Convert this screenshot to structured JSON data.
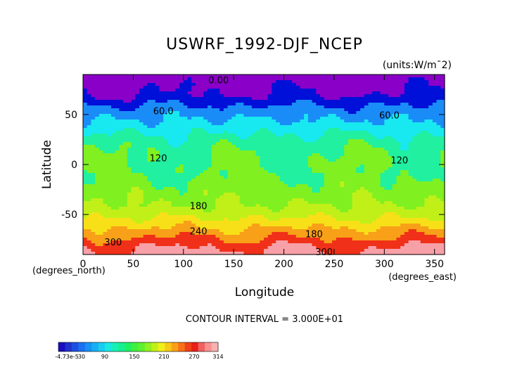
{
  "chart_data": {
    "type": "heatmap",
    "title": "USWRF_1992-DJF_NCEP",
    "units": "(units:W/m^2)",
    "units_display": "(units:W/m¯2)",
    "xlabel": "Longitude",
    "ylabel": "Latitude",
    "x_unit_label": "(degrees_east)",
    "y_unit_label": "(degrees_north)",
    "xlim": [
      0,
      360
    ],
    "ylim": [
      -90,
      90
    ],
    "x_ticks": [
      0,
      50,
      100,
      150,
      200,
      250,
      300,
      350
    ],
    "y_ticks": [
      -50,
      0,
      50
    ],
    "contour_interval_text": "CONTOUR INTERVAL = 3.000E+01",
    "contour_labels": [
      {
        "text": "0.00",
        "lon": 135,
        "lat": 84
      },
      {
        "text": "60.0",
        "lon": 80,
        "lat": 53
      },
      {
        "text": "60.0",
        "lon": 305,
        "lat": 49
      },
      {
        "text": "120",
        "lon": 75,
        "lat": 6
      },
      {
        "text": "120",
        "lon": 315,
        "lat": 4
      },
      {
        "text": "180",
        "lon": 115,
        "lat": -42
      },
      {
        "text": "240",
        "lon": 115,
        "lat": -67
      },
      {
        "text": "180",
        "lon": 230,
        "lat": -70
      },
      {
        "text": "300",
        "lon": 30,
        "lat": -78
      },
      {
        "text": "300",
        "lon": 240,
        "lat": -88
      }
    ],
    "latitudinal_profile": [
      {
        "lat": 90,
        "value": 0
      },
      {
        "lat": 80,
        "value": 20
      },
      {
        "lat": 70,
        "value": 30
      },
      {
        "lat": 55,
        "value": 70
      },
      {
        "lat": 45,
        "value": 90
      },
      {
        "lat": 35,
        "value": 110
      },
      {
        "lat": 20,
        "value": 140
      },
      {
        "lat": 5,
        "value": 150
      },
      {
        "lat": -10,
        "value": 150
      },
      {
        "lat": -25,
        "value": 165
      },
      {
        "lat": -40,
        "value": 180
      },
      {
        "lat": -50,
        "value": 200
      },
      {
        "lat": -60,
        "value": 230
      },
      {
        "lat": -70,
        "value": 260
      },
      {
        "lat": -80,
        "value": 290
      },
      {
        "lat": -87,
        "value": 310
      }
    ],
    "colorbar": {
      "min_label": "-4.73e-5",
      "tick_labels": [
        "-4.73e-5",
        "30",
        "90",
        "150",
        "210",
        "270",
        "314"
      ],
      "colors": [
        "#1a0fbf",
        "#2233cc",
        "#1f4fe0",
        "#1a70f0",
        "#1890f5",
        "#18aef5",
        "#18ccf0",
        "#18e8e0",
        "#18f0b8",
        "#18f090",
        "#20f060",
        "#40f040",
        "#60f030",
        "#90f020",
        "#c0f018",
        "#f0f018",
        "#f8c818",
        "#f8a018",
        "#f87018",
        "#f04018",
        "#e82018",
        "#f06060",
        "#f89090",
        "#f8b0b0"
      ]
    },
    "band_colors": {
      "0-30": "#8a00c8",
      "30-60": "#0010d8",
      "60-90": "#1a8cf8",
      "90-120": "#18e8f0",
      "120-150": "#20f0a0",
      "150-180": "#80f020",
      "180-210": "#c0f018",
      "210-240": "#f8e018",
      "240-270": "#f8a018",
      "270-300": "#f03018",
      "300-314": "#f8a0a8"
    }
  }
}
